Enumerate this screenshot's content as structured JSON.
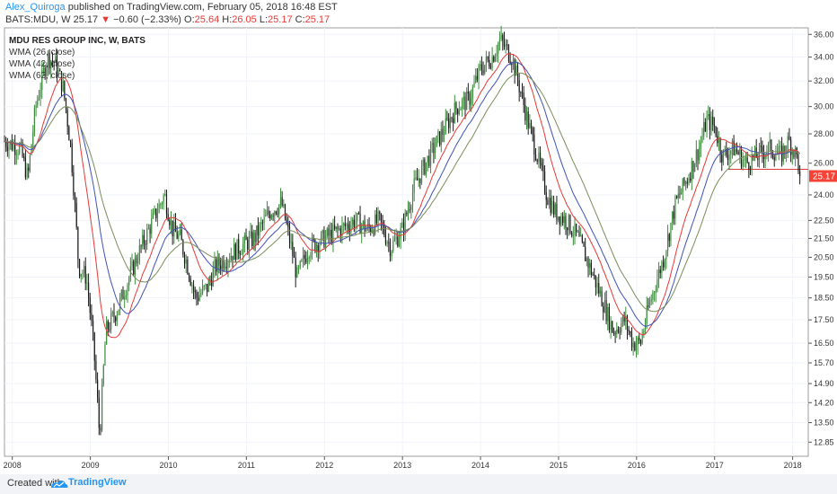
{
  "header": {
    "author": "Alex_Quiroga",
    "published_text": "published on TradingView.com, February 05, 2018 16:48 EST",
    "symbol_line": "BATS:MDU, W",
    "last": "25.17",
    "change": "−0.60 (−2.33%)",
    "o_label": "O:",
    "o": "25.64",
    "h_label": "H:",
    "h": "26.05",
    "l_label": "L:",
    "l": "25.17",
    "c_label": "C:",
    "c": "25.17"
  },
  "footer": {
    "created_with": "Created with",
    "brand": "TradingView"
  },
  "colors": {
    "up": "#3c8c3c",
    "down": "#1a1a1a",
    "wma26": "#e53935",
    "wma42": "#3f51b5",
    "wma62": "#7b8c5a",
    "price_label": "#f44336",
    "grid": "#f0f3fa",
    "axis": "#555555"
  },
  "chart_data": {
    "type": "candlestick",
    "legend": {
      "title": "MDU RES GROUP INC, W, BATS",
      "items": [
        "WMA (26, close)",
        "WMA (42, close)",
        "WMA (62, close)"
      ]
    },
    "x_ticks": [
      "2008",
      "2009",
      "2010",
      "2011",
      "2012",
      "2013",
      "2014",
      "2015",
      "2016",
      "2017",
      "2018"
    ],
    "y_ticks": [
      "36.00",
      "34.00",
      "32.00",
      "30.00",
      "28.00",
      "26.00",
      "24.00",
      "22.50",
      "21.50",
      "20.50",
      "19.50",
      "18.50",
      "17.50",
      "16.50",
      "15.70",
      "14.90",
      "14.20",
      "13.50",
      "12.85"
    ],
    "last_price_label": "25.17",
    "last_price": 25.17,
    "support_level": 25.6,
    "x_range": [
      2007.9,
      2018.2
    ],
    "y_range_log": [
      12.4,
      36.6
    ],
    "price_path": [
      [
        2007.9,
        27.5
      ],
      [
        2008.1,
        27.0
      ],
      [
        2008.2,
        25.0
      ],
      [
        2008.3,
        30.0
      ],
      [
        2008.45,
        34.0
      ],
      [
        2008.55,
        33.5
      ],
      [
        2008.65,
        31.5
      ],
      [
        2008.75,
        27.0
      ],
      [
        2008.85,
        20.0
      ],
      [
        2008.95,
        19.5
      ],
      [
        2009.05,
        16.0
      ],
      [
        2009.12,
        13.0
      ],
      [
        2009.2,
        17.0
      ],
      [
        2009.35,
        18.0
      ],
      [
        2009.5,
        19.5
      ],
      [
        2009.65,
        21.0
      ],
      [
        2009.8,
        22.5
      ],
      [
        2009.95,
        24.0
      ],
      [
        2010.05,
        22.0
      ],
      [
        2010.15,
        21.5
      ],
      [
        2010.25,
        20.0
      ],
      [
        2010.35,
        18.5
      ],
      [
        2010.5,
        19.0
      ],
      [
        2010.6,
        20.0
      ],
      [
        2010.75,
        20.5
      ],
      [
        2010.9,
        21.0
      ],
      [
        2011.1,
        21.5
      ],
      [
        2011.3,
        23.0
      ],
      [
        2011.45,
        23.5
      ],
      [
        2011.55,
        21.5
      ],
      [
        2011.65,
        19.5
      ],
      [
        2011.8,
        21.0
      ],
      [
        2012.0,
        21.5
      ],
      [
        2012.2,
        22.0
      ],
      [
        2012.4,
        22.5
      ],
      [
        2012.55,
        22.0
      ],
      [
        2012.7,
        22.5
      ],
      [
        2012.85,
        21.0
      ],
      [
        2013.0,
        22.0
      ],
      [
        2013.15,
        24.5
      ],
      [
        2013.3,
        26.0
      ],
      [
        2013.5,
        28.0
      ],
      [
        2013.7,
        30.0
      ],
      [
        2013.85,
        30.5
      ],
      [
        2014.0,
        33.0
      ],
      [
        2014.15,
        34.0
      ],
      [
        2014.25,
        35.5
      ],
      [
        2014.4,
        34.0
      ],
      [
        2014.5,
        31.5
      ],
      [
        2014.6,
        29.0
      ],
      [
        2014.75,
        26.0
      ],
      [
        2014.85,
        24.0
      ],
      [
        2014.95,
        23.0
      ],
      [
        2015.1,
        22.5
      ],
      [
        2015.25,
        21.5
      ],
      [
        2015.4,
        20.0
      ],
      [
        2015.55,
        18.5
      ],
      [
        2015.7,
        17.0
      ],
      [
        2015.85,
        17.5
      ],
      [
        2015.95,
        16.5
      ],
      [
        2016.05,
        16.5
      ],
      [
        2016.15,
        18.0
      ],
      [
        2016.35,
        20.5
      ],
      [
        2016.5,
        23.5
      ],
      [
        2016.65,
        25.0
      ],
      [
        2016.8,
        27.0
      ],
      [
        2016.9,
        29.0
      ],
      [
        2017.0,
        28.5
      ],
      [
        2017.1,
        26.5
      ],
      [
        2017.25,
        27.0
      ],
      [
        2017.4,
        26.0
      ],
      [
        2017.55,
        26.5
      ],
      [
        2017.7,
        27.0
      ],
      [
        2017.85,
        26.5
      ],
      [
        2017.95,
        27.5
      ],
      [
        2018.05,
        26.5
      ],
      [
        2018.1,
        25.17
      ]
    ]
  }
}
